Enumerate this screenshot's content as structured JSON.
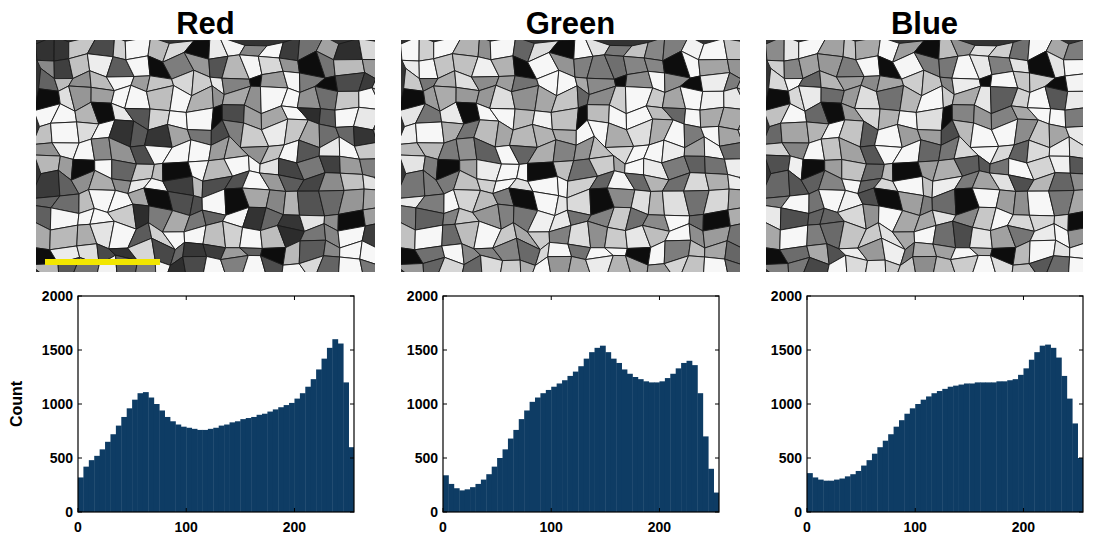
{
  "chart_data": [
    {
      "type": "histogram",
      "title": "Red",
      "y_label": "Count",
      "color": "#0e3c64",
      "grid": false,
      "bins": [
        0,
        5,
        10,
        15,
        20,
        25,
        30,
        35,
        40,
        45,
        50,
        55,
        60,
        65,
        70,
        75,
        80,
        85,
        90,
        95,
        100,
        105,
        110,
        115,
        120,
        125,
        130,
        135,
        140,
        145,
        150,
        155,
        160,
        165,
        170,
        175,
        180,
        185,
        190,
        195,
        200,
        205,
        210,
        215,
        220,
        225,
        230,
        235,
        240,
        245,
        250,
        255
      ],
      "values": [
        320,
        420,
        480,
        520,
        580,
        650,
        720,
        800,
        880,
        960,
        1040,
        1100,
        1110,
        1060,
        1000,
        940,
        880,
        840,
        810,
        790,
        780,
        770,
        760,
        760,
        770,
        780,
        800,
        810,
        830,
        840,
        860,
        870,
        880,
        900,
        910,
        930,
        950,
        970,
        990,
        1010,
        1050,
        1100,
        1160,
        1230,
        1320,
        1420,
        1520,
        1600,
        1560,
        1200,
        600
      ],
      "xlim": [
        0,
        255
      ],
      "xticks": [
        0,
        100,
        200
      ],
      "ylim": [
        0,
        2000
      ],
      "yticks": [
        0,
        500,
        1000,
        1500,
        2000
      ]
    },
    {
      "type": "histogram",
      "title": "Green",
      "color": "#0e3c64",
      "grid": false,
      "bins": [
        0,
        5,
        10,
        15,
        20,
        25,
        30,
        35,
        40,
        45,
        50,
        55,
        60,
        65,
        70,
        75,
        80,
        85,
        90,
        95,
        100,
        105,
        110,
        115,
        120,
        125,
        130,
        135,
        140,
        145,
        150,
        155,
        160,
        165,
        170,
        175,
        180,
        185,
        190,
        195,
        200,
        205,
        210,
        215,
        220,
        225,
        230,
        235,
        240,
        245,
        250,
        255
      ],
      "values": [
        340,
        260,
        220,
        200,
        210,
        230,
        260,
        300,
        350,
        420,
        500,
        580,
        680,
        760,
        860,
        940,
        1020,
        1060,
        1100,
        1130,
        1160,
        1190,
        1220,
        1260,
        1300,
        1350,
        1420,
        1480,
        1520,
        1540,
        1480,
        1420,
        1380,
        1320,
        1280,
        1250,
        1230,
        1210,
        1200,
        1200,
        1210,
        1240,
        1280,
        1330,
        1380,
        1400,
        1360,
        1100,
        700,
        400,
        180
      ],
      "xlim": [
        0,
        255
      ],
      "xticks": [
        0,
        100,
        200
      ],
      "ylim": [
        0,
        2000
      ],
      "yticks": [
        0,
        500,
        1000,
        1500,
        2000
      ]
    },
    {
      "type": "histogram",
      "title": "Blue",
      "color": "#0e3c64",
      "grid": false,
      "bins": [
        0,
        5,
        10,
        15,
        20,
        25,
        30,
        35,
        40,
        45,
        50,
        55,
        60,
        65,
        70,
        75,
        80,
        85,
        90,
        95,
        100,
        105,
        110,
        115,
        120,
        125,
        130,
        135,
        140,
        145,
        150,
        155,
        160,
        165,
        170,
        175,
        180,
        185,
        190,
        195,
        200,
        205,
        210,
        215,
        220,
        225,
        230,
        235,
        240,
        245,
        250,
        255
      ],
      "values": [
        360,
        320,
        300,
        290,
        290,
        300,
        310,
        330,
        350,
        380,
        430,
        480,
        540,
        600,
        660,
        720,
        790,
        850,
        910,
        960,
        1000,
        1040,
        1070,
        1100,
        1120,
        1140,
        1160,
        1170,
        1180,
        1190,
        1190,
        1200,
        1200,
        1200,
        1200,
        1210,
        1210,
        1220,
        1230,
        1270,
        1330,
        1410,
        1480,
        1540,
        1550,
        1520,
        1430,
        1260,
        1050,
        820,
        500
      ],
      "xlim": [
        0,
        255
      ],
      "xticks": [
        0,
        100,
        200
      ],
      "ylim": [
        0,
        2000
      ],
      "yticks": [
        0,
        500,
        1000,
        1500,
        2000
      ]
    }
  ]
}
